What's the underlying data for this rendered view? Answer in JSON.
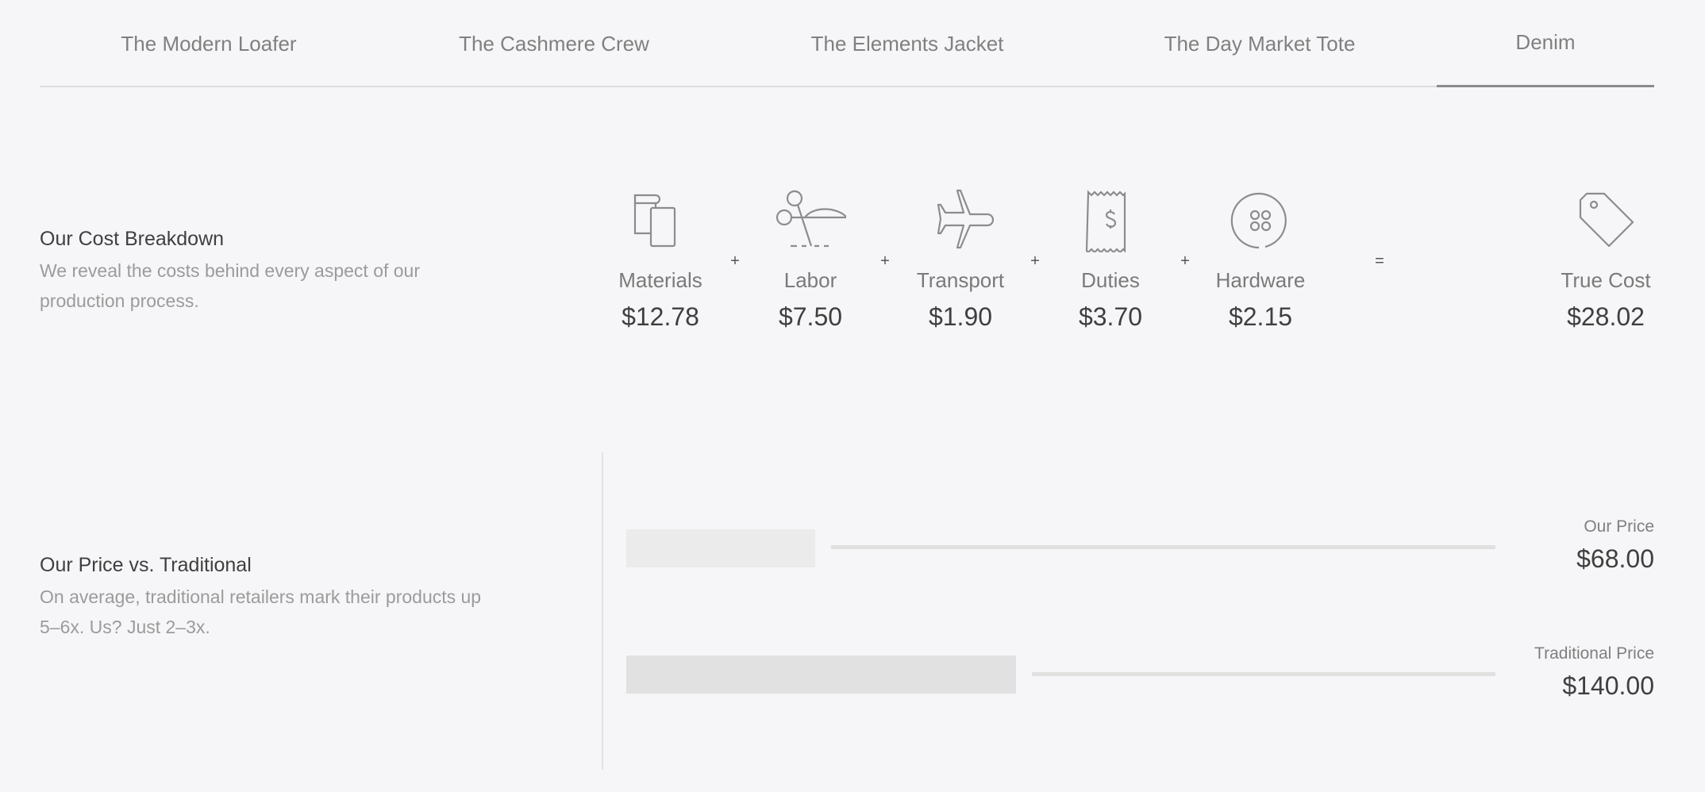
{
  "tabs": [
    {
      "label": "The Modern Loafer",
      "active": false
    },
    {
      "label": "The Cashmere Crew",
      "active": false
    },
    {
      "label": "The Elements Jacket",
      "active": false
    },
    {
      "label": "The Day Market Tote",
      "active": false
    },
    {
      "label": "Denim",
      "active": true
    }
  ],
  "cost": {
    "title": "Our Cost Breakdown",
    "description": "We reveal the costs behind every aspect of our production process.",
    "items": [
      {
        "label": "Materials",
        "value": "$12.78",
        "icon": "fabric-swatch-icon"
      },
      {
        "label": "Labor",
        "value": "$7.50",
        "icon": "scissors-icon"
      },
      {
        "label": "Transport",
        "value": "$1.90",
        "icon": "airplane-icon"
      },
      {
        "label": "Duties",
        "value": "$3.70",
        "icon": "receipt-icon"
      },
      {
        "label": "Hardware",
        "value": "$2.15",
        "icon": "button-icon"
      }
    ],
    "plus": "+",
    "equals": "=",
    "total": {
      "label": "True Cost",
      "value": "$28.02",
      "icon": "price-tag-icon"
    }
  },
  "price": {
    "title": "Our Price vs. Traditional",
    "description": "On average, traditional retailers mark their products up 5–6x. Us? Just 2–3x.",
    "ours": {
      "label": "Our Price",
      "value": "$68.00",
      "amount": 68,
      "color": "#ebebeb"
    },
    "traditional": {
      "label": "Traditional Price",
      "value": "$140.00",
      "amount": 140,
      "color": "#e0e1e0"
    }
  }
}
